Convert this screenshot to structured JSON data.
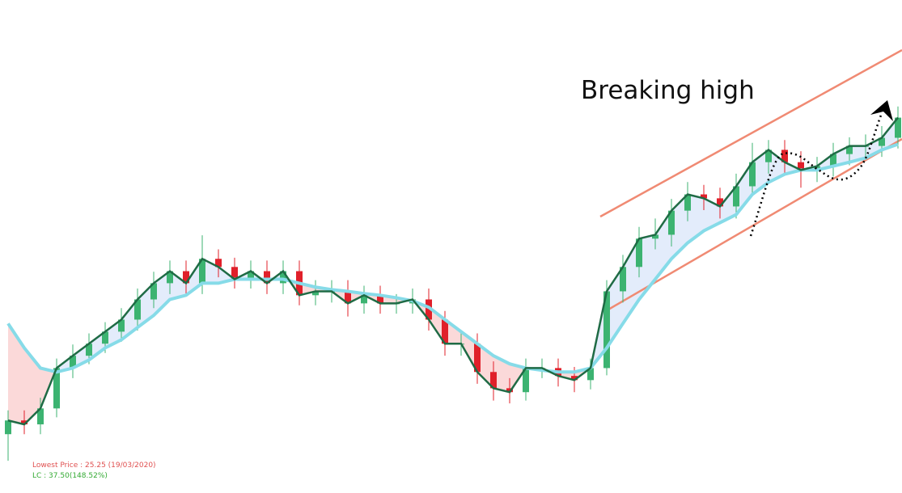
{
  "chart_data": {
    "type": "candlestick",
    "annotation": "Breaking high",
    "notes": [
      "Lowest Price : 25.25 (19/03/2020)",
      "LC : 37.50(148.52%)"
    ],
    "ylim": [
      24.1,
      41.7
    ],
    "up_color": "#3cb371",
    "down_color": "#e0202a",
    "line_color": "#1f6b45",
    "ma_color": "#86dbe8",
    "fill_above": "#e3ecfb",
    "fill_below": "#fbd9d9",
    "open": [
      26.2,
      26.69,
      26.55,
      27.12,
      28.56,
      29.0,
      29.43,
      29.86,
      30.29,
      31.01,
      31.59,
      32.02,
      31.59,
      32.46,
      32.17,
      31.73,
      32.02,
      31.59,
      32.02,
      31.16,
      31.3,
      31.3,
      30.87,
      31.16,
      30.87,
      30.87,
      31.01,
      30.29,
      29.43,
      29.43,
      28.42,
      27.84,
      27.7,
      28.56,
      28.56,
      28.28,
      28.13,
      28.56,
      31.3,
      32.17,
      33.18,
      33.32,
      34.18,
      34.76,
      34.62,
      34.33,
      35.05,
      35.91,
      36.35,
      35.91,
      35.63,
      35.77,
      36.2,
      36.49,
      36.49,
      36.78
    ],
    "high": [
      27.05,
      27.05,
      27.5,
      28.9,
      29.4,
      29.8,
      30.2,
      30.7,
      31.4,
      32.0,
      32.4,
      32.4,
      33.3,
      32.8,
      32.5,
      32.4,
      32.4,
      32.4,
      32.4,
      31.7,
      31.7,
      31.7,
      31.5,
      31.5,
      31.2,
      31.4,
      31.4,
      30.6,
      29.8,
      29.8,
      28.8,
      28.2,
      28.9,
      28.9,
      28.9,
      28.6,
      28.9,
      31.7,
      32.6,
      33.6,
      33.9,
      34.6,
      35.2,
      35.1,
      35.0,
      35.5,
      36.6,
      36.7,
      36.7,
      36.3,
      36.1,
      36.6,
      36.8,
      36.9,
      37.2,
      37.9
    ],
    "low": [
      25.25,
      26.2,
      26.2,
      26.8,
      28.2,
      28.7,
      29.1,
      29.5,
      29.9,
      30.7,
      31.2,
      31.2,
      31.2,
      31.8,
      31.4,
      31.4,
      31.2,
      31.2,
      30.8,
      30.8,
      30.9,
      30.4,
      30.5,
      30.5,
      30.5,
      30.5,
      29.9,
      29.0,
      29.0,
      28.0,
      27.4,
      27.3,
      27.4,
      28.2,
      27.9,
      27.7,
      27.8,
      28.3,
      30.9,
      31.8,
      32.8,
      32.9,
      33.8,
      34.2,
      33.9,
      33.9,
      34.7,
      35.5,
      35.5,
      35.0,
      35.2,
      35.4,
      35.8,
      36.1,
      36.1,
      36.4
    ],
    "close": [
      26.69,
      26.55,
      27.12,
      28.56,
      29.0,
      29.43,
      29.86,
      30.29,
      31.01,
      31.59,
      32.02,
      31.59,
      32.46,
      32.17,
      31.73,
      32.02,
      31.59,
      32.02,
      31.16,
      31.3,
      31.3,
      30.87,
      31.16,
      30.87,
      30.87,
      31.01,
      30.29,
      29.43,
      29.43,
      28.42,
      27.84,
      27.7,
      28.56,
      28.56,
      28.28,
      28.13,
      28.56,
      31.3,
      32.17,
      33.18,
      33.32,
      34.18,
      34.76,
      34.62,
      34.33,
      35.05,
      35.91,
      36.35,
      35.91,
      35.63,
      35.77,
      36.2,
      36.49,
      36.49,
      36.78,
      37.5
    ],
    "ma": [
      30.15,
      29.28,
      28.56,
      28.42,
      28.56,
      28.85,
      29.28,
      29.57,
      30.01,
      30.44,
      31.01,
      31.16,
      31.59,
      31.59,
      31.73,
      31.73,
      31.73,
      31.73,
      31.59,
      31.45,
      31.36,
      31.3,
      31.22,
      31.16,
      31.07,
      30.96,
      30.73,
      30.29,
      29.86,
      29.43,
      29.0,
      28.71,
      28.56,
      28.48,
      28.42,
      28.42,
      28.56,
      29.28,
      30.15,
      31.01,
      31.73,
      32.46,
      33.03,
      33.46,
      33.75,
      34.04,
      34.76,
      35.19,
      35.48,
      35.63,
      35.63,
      35.77,
      35.91,
      36.06,
      36.35,
      36.55
    ]
  }
}
